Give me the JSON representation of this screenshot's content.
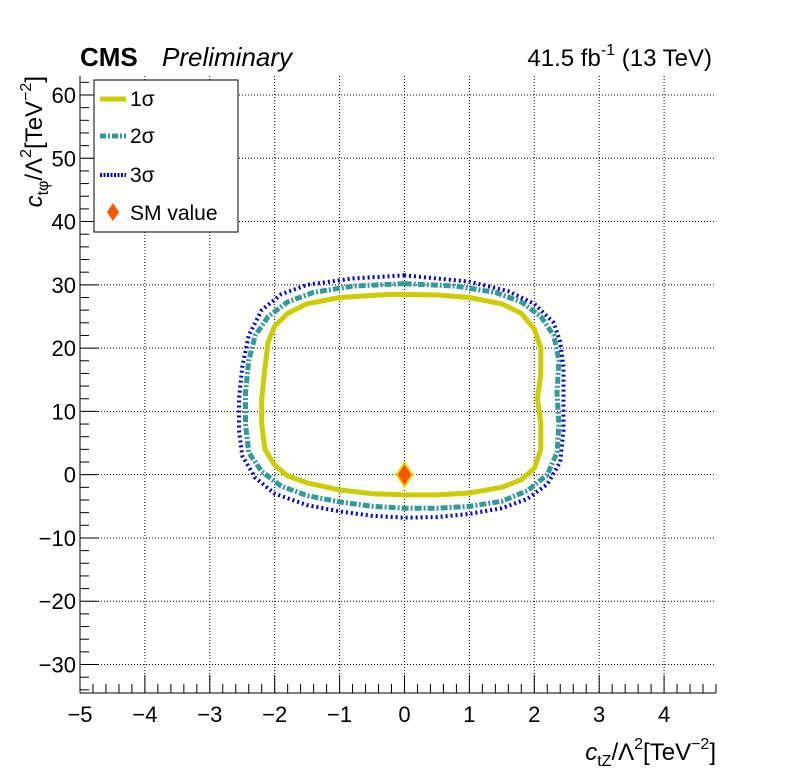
{
  "header": {
    "experiment": "CMS",
    "status": "Preliminary",
    "lumi_value": "41.5 fb",
    "lumi_exp": "-1",
    "energy": " (13 TeV)"
  },
  "chart_data": {
    "type": "line",
    "xlabel": {
      "main": "c",
      "sub": "tZ",
      "rest": "/Λ",
      "sup": "2",
      "unit_open": "[TeV",
      "unit_sup": "−2",
      "unit_close": "]"
    },
    "ylabel": {
      "main": "c",
      "sub": "tφ",
      "rest": "/Λ",
      "sup": "2",
      "unit_open": "[TeV",
      "unit_sup": "−2",
      "unit_close": "]"
    },
    "xlim": [
      -5,
      4.8
    ],
    "ylim": [
      -34.5,
      63
    ],
    "grid": true,
    "legend_position": "top-left",
    "x_ticks": [
      -5,
      -4,
      -3,
      -2,
      -1,
      0,
      1,
      2,
      3,
      4
    ],
    "x_tick_labels": [
      "−5",
      "−4",
      "−3",
      "−2",
      "−1",
      "0",
      "1",
      "2",
      "3",
      "4"
    ],
    "y_ticks": [
      -30,
      -20,
      -10,
      0,
      10,
      20,
      30,
      40,
      50,
      60
    ],
    "y_tick_labels": [
      "−30",
      "−20",
      "−10",
      "0",
      "10",
      "20",
      "30",
      "40",
      "50",
      "60"
    ],
    "series": [
      {
        "name": "1σ",
        "color": "#cccc00",
        "style": "solid",
        "points": [
          [
            -0.2,
            28.5
          ],
          [
            -1.0,
            28.0
          ],
          [
            -1.5,
            27.0
          ],
          [
            -1.8,
            25.5
          ],
          [
            -2.0,
            23.5
          ],
          [
            -2.1,
            21.0
          ],
          [
            -2.15,
            17.0
          ],
          [
            -2.2,
            12.0
          ],
          [
            -2.2,
            8.0
          ],
          [
            -2.15,
            4.0
          ],
          [
            -2.0,
            1.5
          ],
          [
            -1.8,
            -0.2
          ],
          [
            -1.5,
            -1.3
          ],
          [
            -1.0,
            -2.4
          ],
          [
            -0.5,
            -3.0
          ],
          [
            0.0,
            -3.2
          ],
          [
            0.5,
            -3.2
          ],
          [
            1.0,
            -2.9
          ],
          [
            1.5,
            -2.0
          ],
          [
            1.8,
            -0.8
          ],
          [
            2.0,
            1.0
          ],
          [
            2.1,
            4.0
          ],
          [
            2.1,
            8.0
          ],
          [
            2.05,
            12.0
          ],
          [
            2.1,
            16.0
          ],
          [
            2.1,
            20.0
          ],
          [
            2.0,
            23.0
          ],
          [
            1.8,
            25.5
          ],
          [
            1.5,
            27.0
          ],
          [
            1.0,
            28.0
          ],
          [
            0.5,
            28.4
          ],
          [
            -0.2,
            28.5
          ]
        ]
      },
      {
        "name": "2σ",
        "color": "#339999",
        "style": "dash-dot",
        "points": [
          [
            0.0,
            30.2
          ],
          [
            -0.8,
            29.8
          ],
          [
            -1.4,
            28.8
          ],
          [
            -1.8,
            27.3
          ],
          [
            -2.1,
            25.0
          ],
          [
            -2.3,
            22.0
          ],
          [
            -2.4,
            18.0
          ],
          [
            -2.45,
            13.0
          ],
          [
            -2.45,
            8.0
          ],
          [
            -2.4,
            3.5
          ],
          [
            -2.2,
            0.5
          ],
          [
            -1.9,
            -1.8
          ],
          [
            -1.5,
            -3.3
          ],
          [
            -1.0,
            -4.3
          ],
          [
            -0.5,
            -5.0
          ],
          [
            0.0,
            -5.3
          ],
          [
            0.5,
            -5.3
          ],
          [
            1.0,
            -5.0
          ],
          [
            1.5,
            -4.2
          ],
          [
            1.9,
            -2.5
          ],
          [
            2.2,
            0.0
          ],
          [
            2.35,
            3.5
          ],
          [
            2.38,
            8.0
          ],
          [
            2.35,
            13.0
          ],
          [
            2.38,
            18.0
          ],
          [
            2.3,
            22.0
          ],
          [
            2.1,
            25.0
          ],
          [
            1.8,
            27.3
          ],
          [
            1.4,
            28.8
          ],
          [
            0.8,
            29.8
          ],
          [
            0.0,
            30.2
          ]
        ]
      },
      {
        "name": "3σ",
        "color": "#0000cc",
        "style": "dotted",
        "points": [
          [
            0.0,
            31.5
          ],
          [
            -0.8,
            31.0
          ],
          [
            -1.5,
            30.0
          ],
          [
            -1.9,
            28.5
          ],
          [
            -2.2,
            26.0
          ],
          [
            -2.4,
            22.0
          ],
          [
            -2.5,
            17.0
          ],
          [
            -2.55,
            12.0
          ],
          [
            -2.55,
            7.0
          ],
          [
            -2.5,
            3.0
          ],
          [
            -2.3,
            -0.5
          ],
          [
            -2.0,
            -3.0
          ],
          [
            -1.5,
            -4.8
          ],
          [
            -1.0,
            -5.8
          ],
          [
            -0.5,
            -6.5
          ],
          [
            0.0,
            -6.8
          ],
          [
            0.5,
            -6.7
          ],
          [
            1.0,
            -6.2
          ],
          [
            1.5,
            -5.3
          ],
          [
            1.9,
            -3.8
          ],
          [
            2.2,
            -1.5
          ],
          [
            2.4,
            2.0
          ],
          [
            2.45,
            7.0
          ],
          [
            2.45,
            12.0
          ],
          [
            2.45,
            17.0
          ],
          [
            2.4,
            21.0
          ],
          [
            2.3,
            24.0
          ],
          [
            2.0,
            27.0
          ],
          [
            1.6,
            29.0
          ],
          [
            1.0,
            30.5
          ],
          [
            0.0,
            31.5
          ]
        ]
      }
    ],
    "sm_point": {
      "name": "SM value",
      "x": 0,
      "y": 0,
      "color": "#ff5500",
      "edge_color": "#dddd00"
    }
  }
}
